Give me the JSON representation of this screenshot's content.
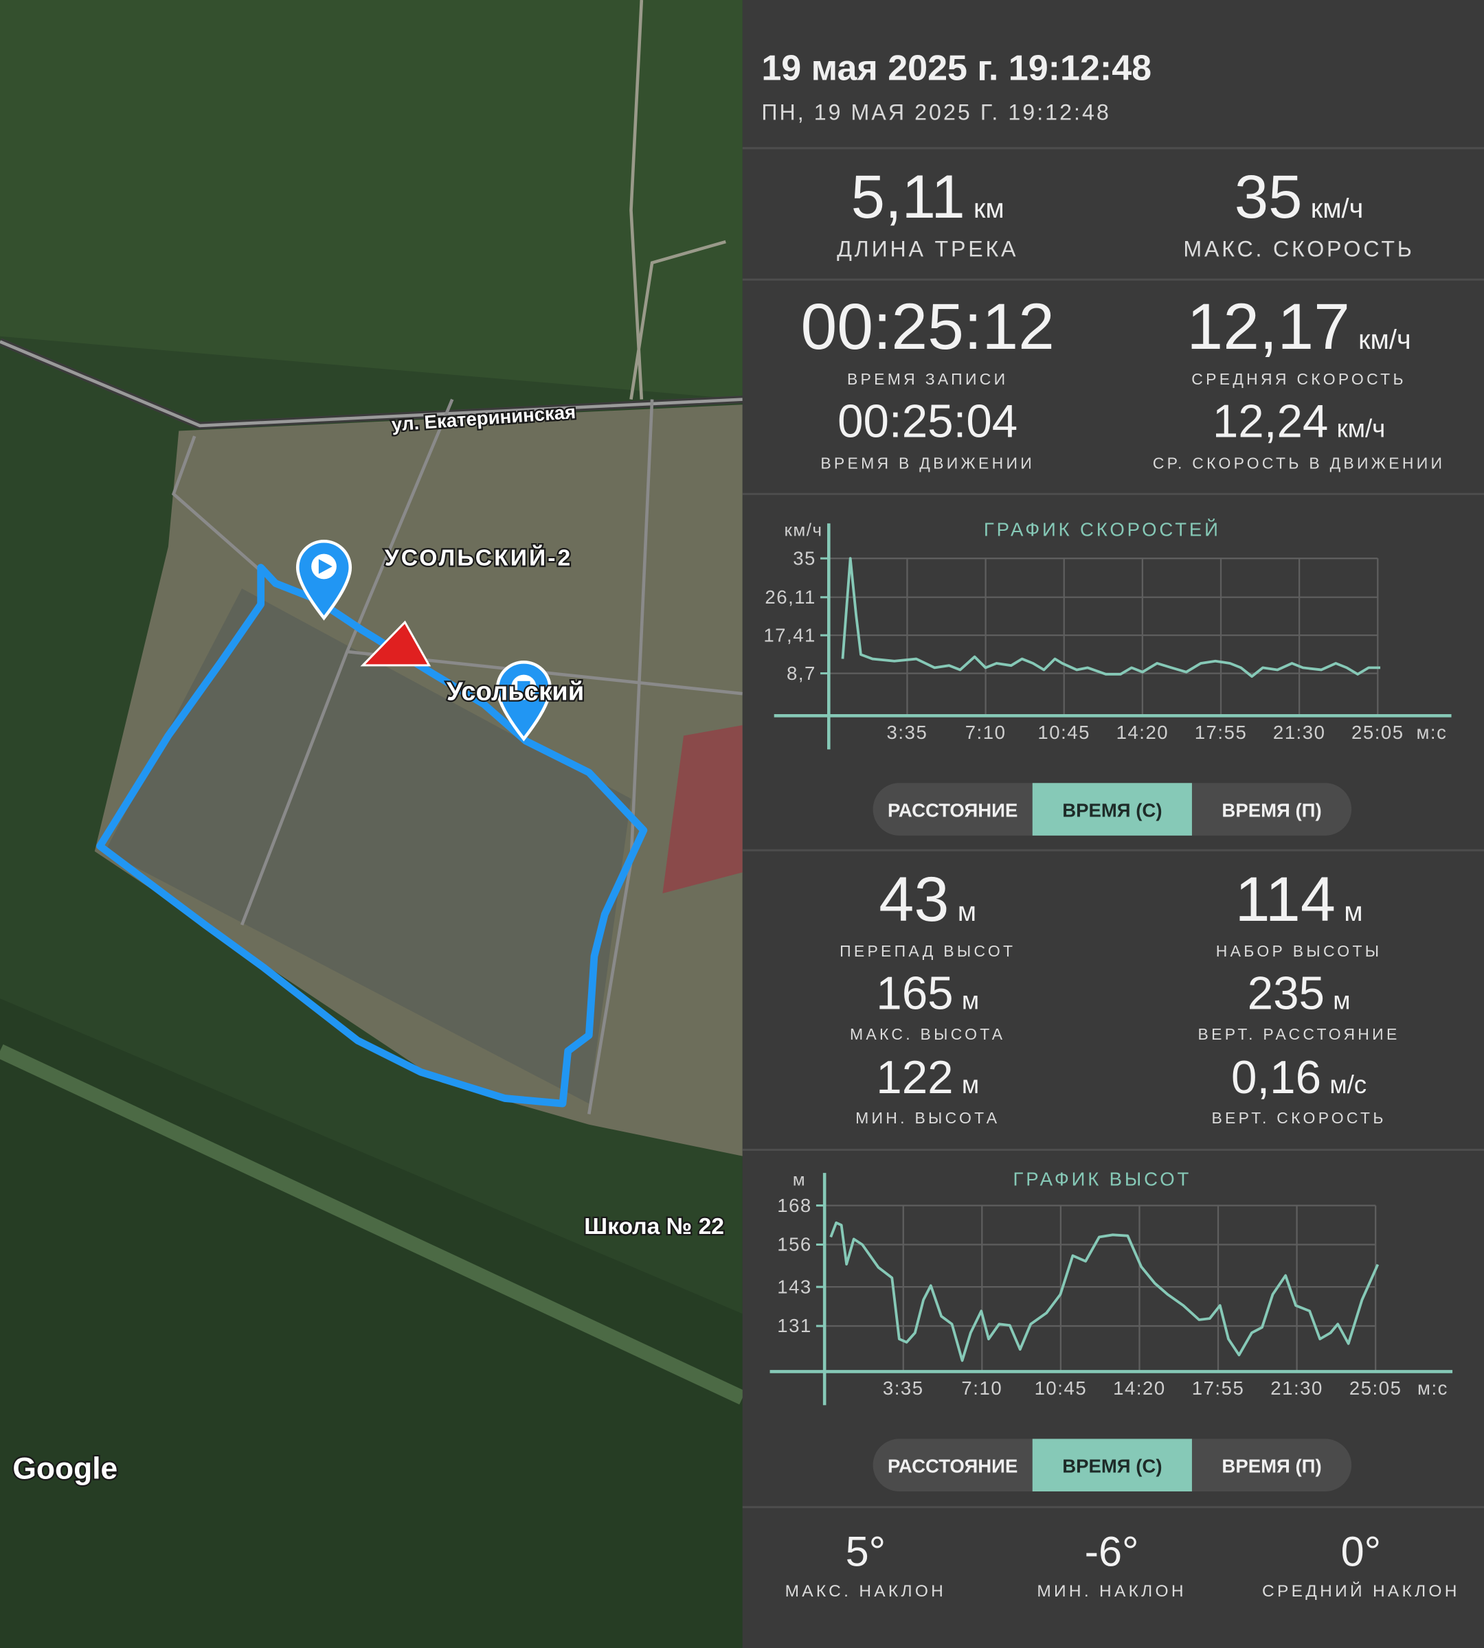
{
  "header": {
    "title": "19 мая 2025 г. 19:12:48",
    "subtitle": "ПН, 19 МАЯ 2025 Г. 19:12:48"
  },
  "stats": [
    {
      "value": "5,11",
      "unit": "км",
      "label": "ДЛИНА ТРЕКА"
    },
    {
      "value": "35",
      "unit": "км/ч",
      "label": "МАКС. СКОРОСТЬ"
    },
    {
      "value": "00:25:12",
      "label": "ВРЕМЯ ЗАПИСИ"
    },
    {
      "value": "12,17",
      "unit": "км/ч",
      "label": "СРЕДНЯЯ СКОРОСТЬ"
    },
    {
      "value": "00:25:04",
      "label": "ВРЕМЯ В ДВИЖЕНИИ"
    },
    {
      "value": "12,24",
      "unit": "км/ч",
      "label": "СР. СКОРОСТЬ В ДВИЖЕНИИ"
    }
  ],
  "chart_data": [
    {
      "type": "line",
      "title": "ГРАФИК СКОРОСТЕЙ",
      "y_label": "км/ч",
      "x_unit": "м:с",
      "color": "#86c9b7",
      "grid": true,
      "x": [
        38,
        59,
        75,
        88,
        120,
        180,
        240,
        290,
        330,
        360,
        400,
        430,
        460,
        500,
        530,
        560,
        590,
        620,
        640,
        680,
        710,
        760,
        800,
        830,
        860,
        900,
        940,
        980,
        1020,
        1060,
        1100,
        1130,
        1160,
        1190,
        1230,
        1270,
        1300,
        1350,
        1390,
        1420,
        1450,
        1480,
        1512
      ],
      "values": [
        12,
        35,
        22,
        13,
        12,
        11.5,
        12,
        10,
        10.5,
        9.5,
        12.5,
        10,
        11,
        10.5,
        12,
        11,
        9.5,
        12,
        11,
        9.5,
        10,
        8.5,
        8.5,
        10,
        9,
        11,
        10,
        9,
        11,
        11.5,
        11,
        10,
        8,
        10,
        9.5,
        11,
        10,
        9.5,
        11,
        10,
        8.5,
        10,
        10
      ],
      "xlim": [
        0,
        1707
      ],
      "ylim": [
        -1,
        43
      ],
      "yticks": [
        {
          "value": 8.7,
          "label": "8,7"
        },
        {
          "value": 17.41,
          "label": "17,41"
        },
        {
          "value": 26.11,
          "label": "26,11"
        },
        35
      ],
      "xticks": [
        {
          "value": 215,
          "label": "3:35"
        },
        {
          "value": 430,
          "label": "7:10"
        },
        {
          "value": 645,
          "label": "10:45"
        },
        {
          "value": 860,
          "label": "14:20"
        },
        {
          "value": 1075,
          "label": "17:55"
        },
        {
          "value": 1290,
          "label": "21:30"
        },
        {
          "value": 1505,
          "label": "25:05"
        }
      ]
    },
    {
      "type": "line",
      "title": "ГРАФИК ВЫСОТ",
      "y_label": "м",
      "x_unit": "м:с",
      "color": "#86c9b7",
      "grid": true,
      "x": [
        17,
        32,
        46,
        60,
        80,
        103,
        147,
        184,
        204,
        224,
        247,
        270,
        290,
        319,
        348,
        376,
        399,
        428,
        448,
        477,
        506,
        534,
        563,
        606,
        644,
        678,
        713,
        750,
        787,
        828,
        865,
        902,
        937,
        980,
        1023,
        1052,
        1080,
        1103,
        1132,
        1167,
        1195,
        1224,
        1259,
        1287,
        1325,
        1353,
        1382,
        1402,
        1431,
        1468,
        1511
      ],
      "values": [
        158.3,
        162.7,
        162,
        150,
        157.7,
        156,
        149,
        145.8,
        127,
        126,
        128.9,
        139,
        143.4,
        134,
        131.6,
        120.4,
        128.9,
        135.6,
        127,
        131.6,
        131.2,
        123.8,
        131.6,
        135,
        140.7,
        152.6,
        150.9,
        158.3,
        159,
        158.7,
        149.2,
        144.1,
        140.7,
        137.3,
        132.9,
        133.3,
        137.3,
        127,
        122.1,
        128.9,
        130.6,
        140.7,
        146.5,
        137.3,
        135.6,
        127,
        128.9,
        131.6,
        125.6,
        139,
        149.9
      ],
      "xlim": [
        0,
        1715
      ],
      "ylim": [
        117,
        178
      ],
      "yticks": [
        131,
        143,
        156,
        168
      ],
      "xticks": [
        {
          "value": 215,
          "label": "3:35"
        },
        {
          "value": 430,
          "label": "7:10"
        },
        {
          "value": 645,
          "label": "10:45"
        },
        {
          "value": 860,
          "label": "14:20"
        },
        {
          "value": 1075,
          "label": "17:55"
        },
        {
          "value": 1290,
          "label": "21:30"
        },
        {
          "value": 1505,
          "label": "25:05"
        }
      ]
    }
  ],
  "speed_toggle": {
    "options": [
      "РАССТОЯНИЕ",
      "ВРЕМЯ (С)",
      "ВРЕМЯ (П)"
    ],
    "selected": 1
  },
  "altitude_stats": [
    {
      "value": "43",
      "unit": "м",
      "label": "ПЕРЕПАД ВЫСОТ"
    },
    {
      "value": "114",
      "unit": "м",
      "label": "НАБОР ВЫСОТЫ"
    },
    {
      "value": "165",
      "unit": "м",
      "label": "МАКС. ВЫСОТА"
    },
    {
      "value": "235",
      "unit": "м",
      "label": "ВЕРТ. РАССТОЯНИЕ"
    },
    {
      "value": "122",
      "unit": "м",
      "label": "МИН. ВЫСОТА"
    },
    {
      "value": "0,16",
      "unit": "м/с",
      "label": "ВЕРТ. СКОРОСТЬ"
    }
  ],
  "altitude_toggle": {
    "options": [
      "РАССТОЯНИЕ",
      "ВРЕМЯ (С)",
      "ВРЕМЯ (П)"
    ],
    "selected": 1
  },
  "slope_stats": [
    {
      "value": "5°",
      "label": "МАКС. НАКЛОН"
    },
    {
      "value": "-6°",
      "label": "МИН. НАКЛОН"
    },
    {
      "value": "0°",
      "label": "СРЕДНИЙ НАКЛОН"
    }
  ],
  "map": {
    "street": "ул. Екатерининская",
    "district_north": "УСОЛЬСКИЙ-2",
    "district": "Усольский",
    "poi": "Школа № 22",
    "attribution": "Google"
  }
}
